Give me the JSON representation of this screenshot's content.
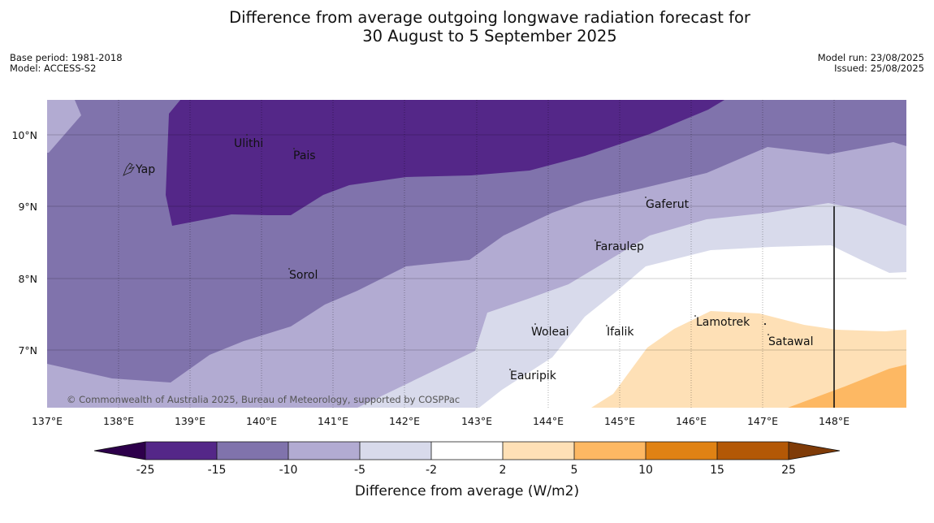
{
  "header": {
    "title_line1": "Difference from average outgoing longwave radiation forecast for",
    "title_line2": "30 August to 5 September 2025",
    "base_period": "Base period: 1981-2018",
    "model": "Model: ACCESS-S2",
    "model_run": "Model run: 23/08/2025",
    "issued": "Issued: 25/08/2025"
  },
  "map": {
    "copyright": "© Commonwealth of Australia 2025, Bureau of Meteorology, supported by COSPPac",
    "lon_ticks": [
      "137°E",
      "138°E",
      "139°E",
      "140°E",
      "141°E",
      "142°E",
      "143°E",
      "144°E",
      "145°E",
      "146°E",
      "147°E",
      "148°E"
    ],
    "lat_ticks": [
      "10°N",
      "9°N",
      "8°N",
      "7°N"
    ],
    "places": [
      {
        "name": "Ulithi"
      },
      {
        "name": "Pais"
      },
      {
        "name": "Yap"
      },
      {
        "name": "Gaferut"
      },
      {
        "name": "Faraulep"
      },
      {
        "name": "Sorol"
      },
      {
        "name": "Lamotrek"
      },
      {
        "name": "Satawal"
      },
      {
        "name": "Woleai"
      },
      {
        "name": "Ifalik"
      },
      {
        "name": "Eauripik"
      }
    ]
  },
  "legend": {
    "title": "Difference from average (W/m2)",
    "tick_labels": [
      "-25",
      "-15",
      "-10",
      "-5",
      "-2",
      "2",
      "5",
      "10",
      "15",
      "25"
    ],
    "colors": [
      "#2d004b",
      "#542788",
      "#8073ac",
      "#b2abd2",
      "#d8daeb",
      "#ffffff",
      "#fee0b6",
      "#fdb863",
      "#e08214",
      "#b35806",
      "#7f3b08"
    ]
  }
}
